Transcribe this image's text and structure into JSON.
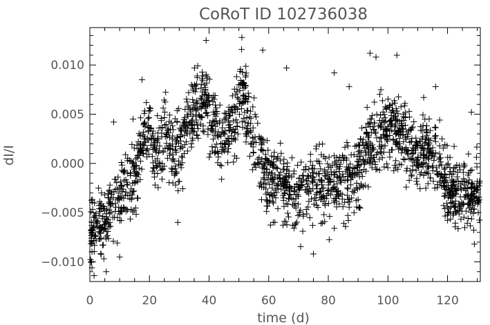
{
  "chart_data": {
    "type": "scatter",
    "title": "CoRoT ID 102736038",
    "xlabel": "time (d)",
    "ylabel": "dI/I",
    "xlim": [
      0,
      131
    ],
    "ylim": [
      -0.012,
      0.0138
    ],
    "x_ticks": [
      0,
      20,
      40,
      60,
      80,
      100,
      120
    ],
    "x_tick_labels": [
      "0",
      "20",
      "40",
      "60",
      "80",
      "100",
      "120"
    ],
    "y_ticks": [
      -0.01,
      -0.005,
      0.0,
      0.005,
      0.01
    ],
    "y_tick_labels": [
      "−0.010",
      "−0.005",
      "0.000",
      "0.005",
      "0.010"
    ],
    "marker": "plus",
    "marker_color": "#000000",
    "grid": false,
    "trend": {
      "x": [
        0,
        3,
        6,
        9,
        12,
        15,
        18,
        20,
        22,
        25,
        28,
        31,
        34,
        37,
        39,
        42,
        45,
        48,
        51,
        54,
        57,
        60,
        63,
        66,
        70,
        75,
        80,
        85,
        89,
        92,
        95,
        98,
        101,
        104,
        107,
        110,
        113,
        116,
        119,
        122,
        125,
        128,
        131
      ],
      "y": [
        -0.007,
        -0.0065,
        -0.005,
        -0.0035,
        -0.0025,
        -0.001,
        0.003,
        0.0035,
        0.0005,
        0.003,
        0.001,
        0.002,
        0.0055,
        0.007,
        0.0065,
        0.003,
        0.0025,
        0.0035,
        0.0075,
        0.004,
        0.0005,
        -0.0015,
        -0.002,
        -0.0025,
        -0.003,
        -0.0025,
        -0.002,
        -0.002,
        -0.002,
        0.001,
        0.002,
        0.003,
        0.004,
        0.003,
        0.002,
        0.001,
        0.0015,
        0.001,
        -0.002,
        -0.003,
        -0.003,
        -0.003,
        -0.0025
      ]
    },
    "scatter_std": 0.0018,
    "n_points": 2000,
    "outliers": [
      [
        5.5,
        -0.011
      ],
      [
        10,
        -0.0095
      ],
      [
        14.5,
        0.0045
      ],
      [
        17.5,
        0.0085
      ],
      [
        29.5,
        -0.006
      ],
      [
        39,
        0.0125
      ],
      [
        51,
        0.0128
      ],
      [
        58,
        0.0115
      ],
      [
        66,
        0.0097
      ],
      [
        75,
        -0.0092
      ],
      [
        82,
        0.0092
      ],
      [
        87,
        0.0078
      ],
      [
        94,
        0.0112
      ],
      [
        96,
        0.0108
      ],
      [
        103,
        0.011
      ],
      [
        112,
        0.0067
      ],
      [
        116,
        0.0078
      ],
      [
        128,
        0.0052
      ],
      [
        129,
        -0.0082
      ],
      [
        8,
        0.0042
      ]
    ]
  }
}
